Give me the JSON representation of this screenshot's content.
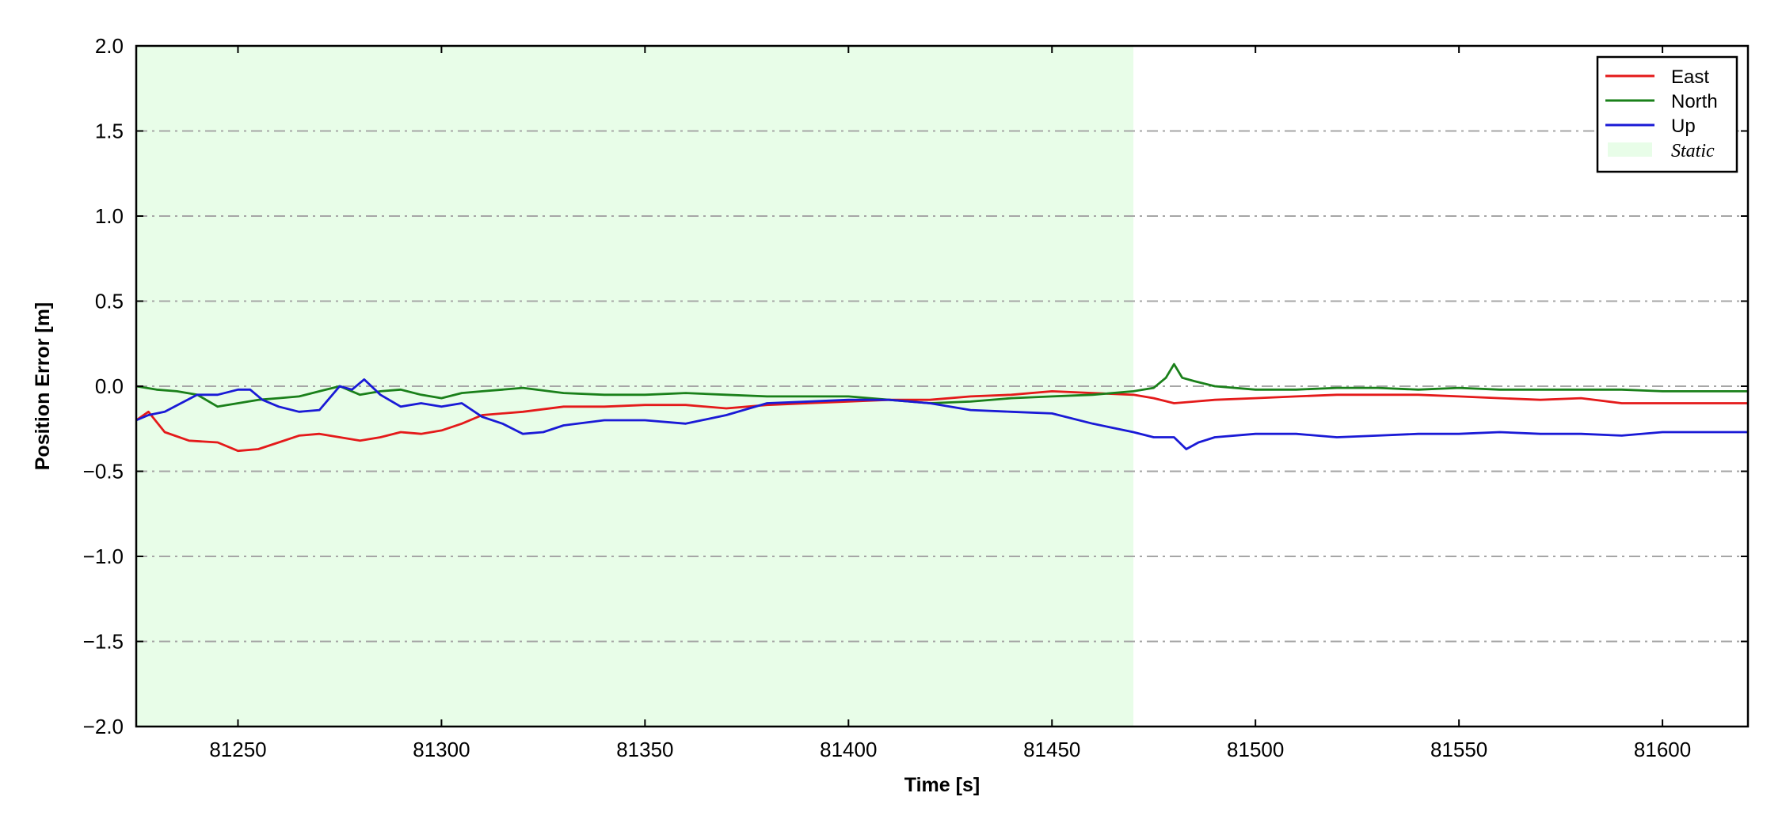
{
  "chart_data": {
    "type": "line",
    "title": "",
    "xlabel": "Time [s]",
    "ylabel": "Position Error [m]",
    "xlim": [
      81225,
      81621
    ],
    "ylim": [
      -2.0,
      2.0
    ],
    "x_ticks": [
      81250,
      81300,
      81350,
      81400,
      81450,
      81500,
      81550,
      81600
    ],
    "x_tick_labels": [
      "81250",
      "81300",
      "81350",
      "81400",
      "81450",
      "81500",
      "81550",
      "81600"
    ],
    "y_ticks": [
      -2.0,
      -1.5,
      -1.0,
      -0.5,
      0.0,
      0.5,
      1.0,
      1.5,
      2.0
    ],
    "y_tick_labels": [
      "−2.0",
      "−1.5",
      "−1.0",
      "−0.5",
      "0.0",
      "0.5",
      "1.0",
      "1.5",
      "2.0"
    ],
    "grid": "horizontal dash-dot",
    "legend_position": "top-right",
    "static_region": {
      "label": "Static",
      "x_start": 81225,
      "x_end": 81470,
      "color": "#e8fde8"
    },
    "series": [
      {
        "name": "East",
        "color": "#e41a1a",
        "x": [
          81225,
          81228,
          81232,
          81238,
          81245,
          81250,
          81255,
          81260,
          81265,
          81270,
          81275,
          81280,
          81285,
          81290,
          81295,
          81300,
          81305,
          81310,
          81320,
          81330,
          81340,
          81350,
          81360,
          81370,
          81380,
          81390,
          81400,
          81410,
          81420,
          81430,
          81440,
          81450,
          81460,
          81470,
          81475,
          81480,
          81485,
          81490,
          81500,
          81510,
          81520,
          81530,
          81540,
          81550,
          81560,
          81570,
          81580,
          81590,
          81600,
          81610,
          81621
        ],
        "y": [
          -0.2,
          -0.15,
          -0.27,
          -0.32,
          -0.33,
          -0.38,
          -0.37,
          -0.33,
          -0.29,
          -0.28,
          -0.3,
          -0.32,
          -0.3,
          -0.27,
          -0.28,
          -0.26,
          -0.22,
          -0.17,
          -0.15,
          -0.12,
          -0.12,
          -0.11,
          -0.11,
          -0.13,
          -0.11,
          -0.1,
          -0.09,
          -0.08,
          -0.08,
          -0.06,
          -0.05,
          -0.03,
          -0.04,
          -0.05,
          -0.07,
          -0.1,
          -0.09,
          -0.08,
          -0.07,
          -0.06,
          -0.05,
          -0.05,
          -0.05,
          -0.06,
          -0.07,
          -0.08,
          -0.07,
          -0.1,
          -0.1,
          -0.1,
          -0.1
        ]
      },
      {
        "name": "North",
        "color": "#1a801a",
        "x": [
          81225,
          81230,
          81235,
          81240,
          81245,
          81250,
          81255,
          81260,
          81265,
          81270,
          81275,
          81280,
          81285,
          81290,
          81295,
          81300,
          81305,
          81310,
          81315,
          81320,
          81330,
          81340,
          81350,
          81360,
          81370,
          81380,
          81390,
          81400,
          81410,
          81420,
          81430,
          81440,
          81450,
          81460,
          81470,
          81475,
          81478,
          81480,
          81482,
          81485,
          81490,
          81500,
          81510,
          81520,
          81530,
          81540,
          81550,
          81560,
          81570,
          81580,
          81590,
          81600,
          81610,
          81621
        ],
        "y": [
          0.0,
          -0.02,
          -0.03,
          -0.05,
          -0.12,
          -0.1,
          -0.08,
          -0.07,
          -0.06,
          -0.03,
          0.0,
          -0.05,
          -0.03,
          -0.02,
          -0.05,
          -0.07,
          -0.04,
          -0.03,
          -0.02,
          -0.01,
          -0.04,
          -0.05,
          -0.05,
          -0.04,
          -0.05,
          -0.06,
          -0.06,
          -0.06,
          -0.08,
          -0.1,
          -0.09,
          -0.07,
          -0.06,
          -0.05,
          -0.03,
          -0.01,
          0.05,
          0.13,
          0.05,
          0.03,
          0.0,
          -0.02,
          -0.02,
          -0.01,
          -0.01,
          -0.02,
          -0.01,
          -0.02,
          -0.02,
          -0.02,
          -0.02,
          -0.03,
          -0.03,
          -0.03
        ]
      },
      {
        "name": "Up",
        "color": "#1a1ad6",
        "x": [
          81225,
          81228,
          81232,
          81236,
          81240,
          81245,
          81250,
          81253,
          81256,
          81260,
          81265,
          81270,
          81275,
          81278,
          81281,
          81285,
          81290,
          81295,
          81300,
          81305,
          81310,
          81315,
          81320,
          81325,
          81330,
          81340,
          81350,
          81360,
          81370,
          81380,
          81390,
          81400,
          81410,
          81420,
          81430,
          81440,
          81450,
          81460,
          81470,
          81475,
          81480,
          81483,
          81486,
          81490,
          81500,
          81510,
          81520,
          81530,
          81540,
          81550,
          81560,
          81570,
          81580,
          81590,
          81600,
          81610,
          81621
        ],
        "y": [
          -0.2,
          -0.17,
          -0.15,
          -0.1,
          -0.05,
          -0.05,
          -0.02,
          -0.02,
          -0.08,
          -0.12,
          -0.15,
          -0.14,
          0.0,
          -0.02,
          0.04,
          -0.05,
          -0.12,
          -0.1,
          -0.12,
          -0.1,
          -0.18,
          -0.22,
          -0.28,
          -0.27,
          -0.23,
          -0.2,
          -0.2,
          -0.22,
          -0.17,
          -0.1,
          -0.09,
          -0.08,
          -0.08,
          -0.1,
          -0.14,
          -0.15,
          -0.16,
          -0.22,
          -0.27,
          -0.3,
          -0.3,
          -0.37,
          -0.33,
          -0.3,
          -0.28,
          -0.28,
          -0.3,
          -0.29,
          -0.28,
          -0.28,
          -0.27,
          -0.28,
          -0.28,
          -0.29,
          -0.27,
          -0.27,
          -0.27
        ]
      }
    ]
  }
}
